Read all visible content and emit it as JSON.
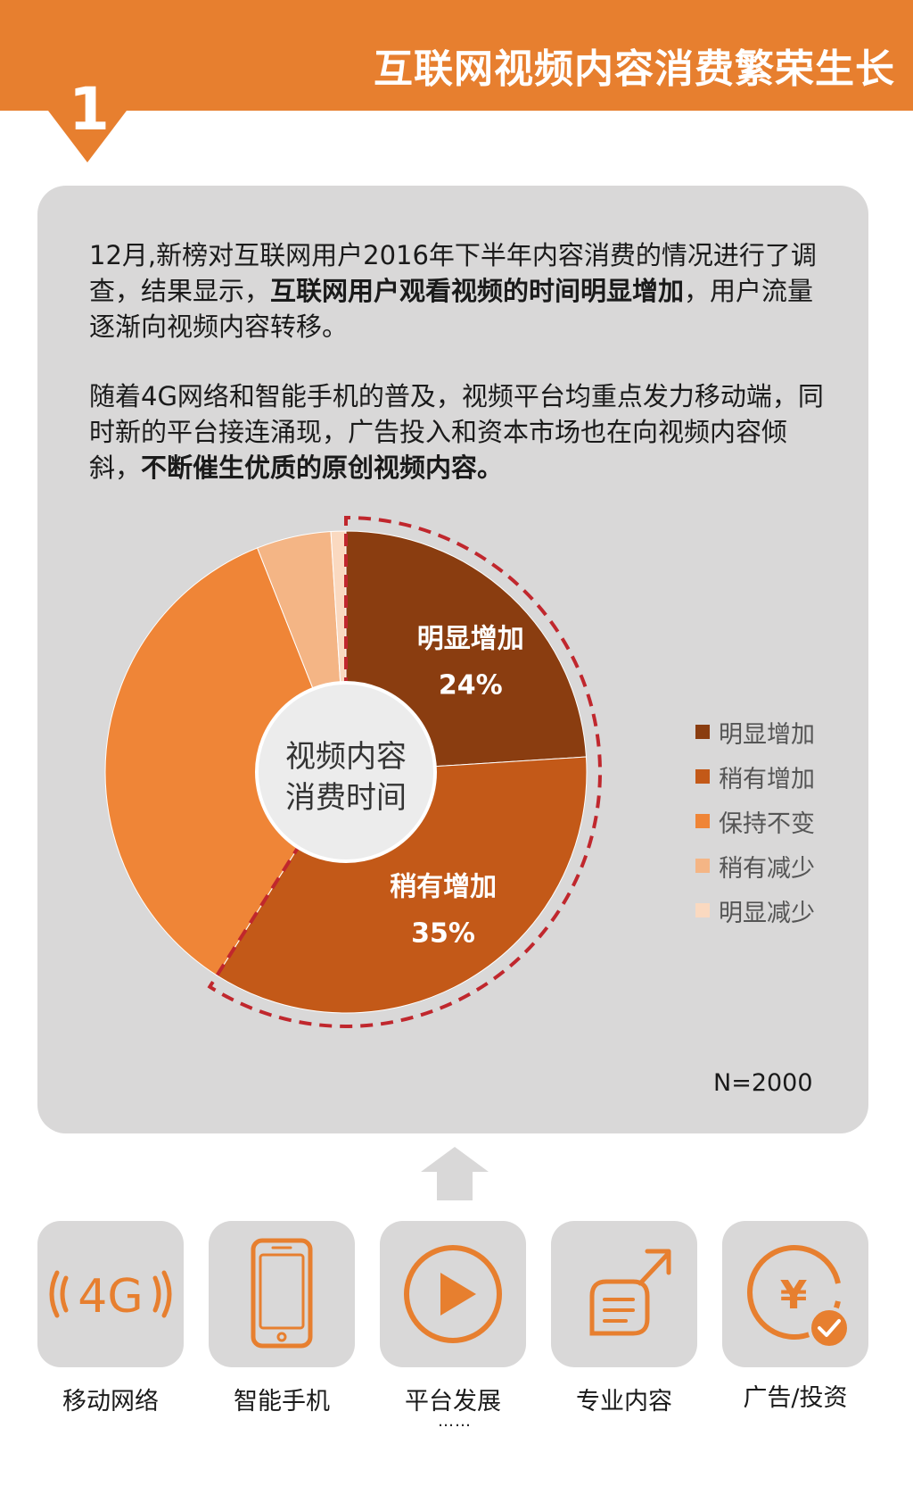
{
  "header": {
    "section_number": "1",
    "title": "互联网视频内容消费繁荣生长"
  },
  "intro": {
    "para1_text": "12月,新榜对互联网用户2016年下半年内容消费的情况进行了调查，结果显示，",
    "para1_bold": "互联网用户观看视频的时间明显增加",
    "para1_end": "，用户流量逐渐向视频内容转移。",
    "para2_text": "随着4G网络和智能手机的普及，视频平台均重点发力移动端，同时新的平台接连涌现，广告投入和资本市场也在向视频内容倾斜，",
    "para2_bold": "不断催生优质的原创视频内容。"
  },
  "chart_data": {
    "type": "pie",
    "center_label_line1": "视频内容",
    "center_label_line2": "消费时间",
    "slices": [
      {
        "label": "明显增加",
        "value": 24,
        "color": "#8a3d10",
        "show_label": true
      },
      {
        "label": "稍有增加",
        "value": 35,
        "color": "#c35918",
        "show_label": true
      },
      {
        "label": "保持不变",
        "value": 35,
        "color": "#ef8537",
        "show_label": false
      },
      {
        "label": "稍有减少",
        "value": 5,
        "color": "#f4b585",
        "show_label": false
      },
      {
        "label": "明显减少",
        "value": 1,
        "color": "#fad9c0",
        "show_label": false
      }
    ],
    "sample_size": "N=2000",
    "value_suffix": "%"
  },
  "drivers": [
    {
      "label": "移动网络",
      "icon": "4g-signal-icon",
      "icon_text": "4G"
    },
    {
      "label": "智能手机",
      "icon": "smartphone-icon"
    },
    {
      "label": "平台发展",
      "icon": "play-button-icon"
    },
    {
      "label": "专业内容",
      "icon": "content-growth-icon"
    },
    {
      "label": "广告/投资",
      "icon": "yuan-coin-icon",
      "icon_text": "¥"
    }
  ],
  "drivers_ellipsis": "……",
  "colors": {
    "accent": "#e77f2f",
    "card_bg": "#d9d8d8",
    "dashed_highlight": "#c0272d"
  }
}
